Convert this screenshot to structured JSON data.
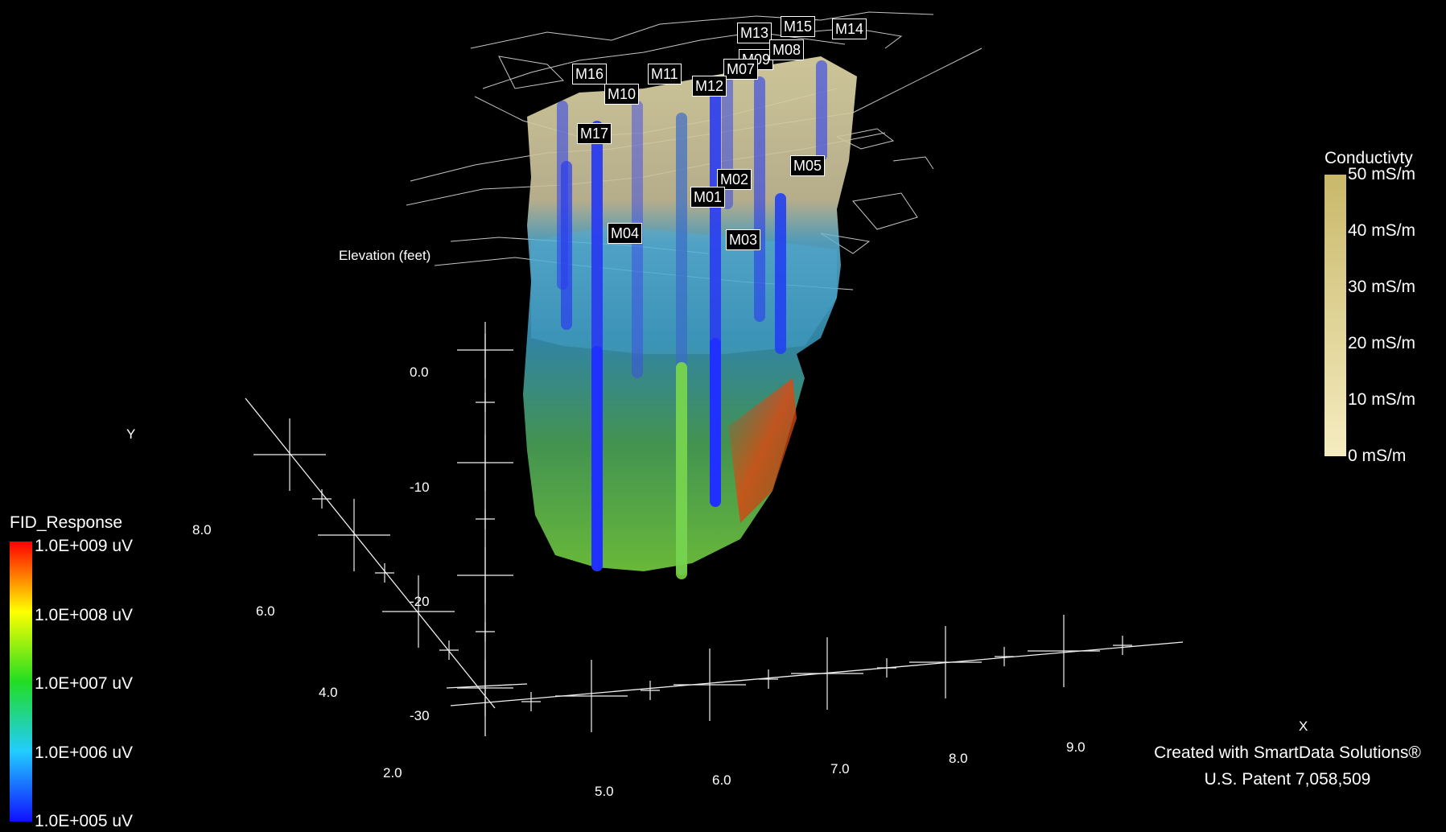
{
  "axes": {
    "x_label": "X",
    "y_label": "Y",
    "z_label": "Elevation (feet)",
    "x_ticks": [
      "2.0",
      "5.0",
      "6.0",
      "7.0",
      "8.0",
      "9.0"
    ],
    "y_ticks": [
      "4.0",
      "6.0",
      "8.0"
    ],
    "z_ticks": [
      "0.0",
      "-10",
      "-20",
      "-30"
    ]
  },
  "wells": [
    "M13",
    "M15",
    "M14",
    "M16",
    "M11",
    "M09",
    "M07",
    "M08",
    "M10",
    "M12",
    "M17",
    "M05",
    "M02",
    "M01",
    "M04",
    "M03"
  ],
  "legend_fid": {
    "title": "FID_Response",
    "ticks": [
      "1.0E+009 uV",
      "1.0E+008 uV",
      "1.0E+007 uV",
      "1.0E+006 uV",
      "1.0E+005 uV"
    ],
    "colors": [
      "#ff0000",
      "#ffff00",
      "#22dd22",
      "#22ccff",
      "#1010ff"
    ]
  },
  "legend_conductivity": {
    "title": "Conductivty",
    "ticks": [
      "50 mS/m",
      "40 mS/m",
      "30 mS/m",
      "20 mS/m",
      "10 mS/m",
      "0 mS/m"
    ],
    "colors": [
      "#c9b86a",
      "#f5ecc0"
    ]
  },
  "credit": {
    "line1": "Created with SmartData Solutions®",
    "line2": "U.S. Patent 7,058,509"
  }
}
